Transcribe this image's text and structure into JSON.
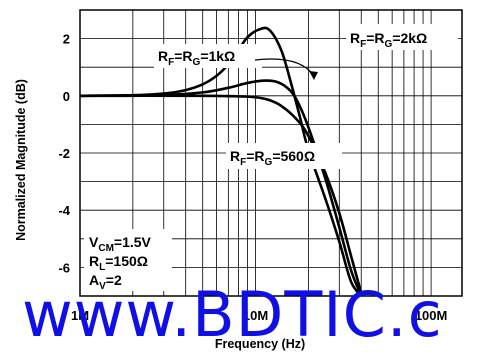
{
  "chart_data": {
    "type": "line",
    "xlabel": "Frequency (Hz)",
    "ylabel": "Normalized Magnitude (dB)",
    "x_scale": "log",
    "xlim": [
      1000000,
      150000000
    ],
    "ylim": [
      -7,
      3
    ],
    "x_ticks": [
      {
        "value": 1000000,
        "label": "1M"
      },
      {
        "value": 10000000,
        "label": "10M"
      },
      {
        "value": 100000000,
        "label": "100M"
      }
    ],
    "y_ticks": [
      {
        "value": 2,
        "label": "2"
      },
      {
        "value": 0,
        "label": "0"
      },
      {
        "value": -2,
        "label": "-2"
      },
      {
        "value": -4,
        "label": "-4"
      },
      {
        "value": -6,
        "label": "-6"
      }
    ],
    "grid": true,
    "series": [
      {
        "name": "RF=RG=2kΩ",
        "points": [
          [
            1000000,
            0
          ],
          [
            2000000,
            0.02
          ],
          [
            3000000,
            0.08
          ],
          [
            4000000,
            0.2
          ],
          [
            5000000,
            0.4
          ],
          [
            6000000,
            0.7
          ],
          [
            7000000,
            1.1
          ],
          [
            8000000,
            1.6
          ],
          [
            9000000,
            2.05
          ],
          [
            10500000,
            2.32
          ],
          [
            12000000,
            2.3
          ],
          [
            14000000,
            1.6
          ],
          [
            16000000,
            0.4
          ],
          [
            18000000,
            -0.8
          ],
          [
            20000000,
            -1.9
          ],
          [
            25000000,
            -3.6
          ],
          [
            30000000,
            -5.1
          ],
          [
            35000000,
            -6.5
          ],
          [
            40000000,
            -7.0
          ]
        ]
      },
      {
        "name": "RF=RG=1kΩ",
        "points": [
          [
            1000000,
            0
          ],
          [
            3000000,
            0.03
          ],
          [
            5000000,
            0.12
          ],
          [
            7000000,
            0.28
          ],
          [
            9000000,
            0.45
          ],
          [
            11000000,
            0.53
          ],
          [
            13000000,
            0.5
          ],
          [
            15000000,
            0.3
          ],
          [
            17000000,
            -0.1
          ],
          [
            20000000,
            -1.1
          ],
          [
            25000000,
            -2.9
          ],
          [
            30000000,
            -4.6
          ],
          [
            35000000,
            -6.1
          ],
          [
            40000000,
            -7.0
          ]
        ]
      },
      {
        "name": "RF=RG=560Ω",
        "points": [
          [
            1000000,
            0
          ],
          [
            5000000,
            0
          ],
          [
            8000000,
            -0.02
          ],
          [
            10000000,
            -0.05
          ],
          [
            12000000,
            -0.15
          ],
          [
            14000000,
            -0.35
          ],
          [
            17000000,
            -0.8
          ],
          [
            20000000,
            -1.4
          ],
          [
            25000000,
            -2.7
          ],
          [
            30000000,
            -4.1
          ],
          [
            35000000,
            -5.6
          ],
          [
            40000000,
            -6.9
          ]
        ]
      }
    ],
    "annotations": {
      "curve_2k": {
        "prefix": "R",
        "sub1": "F",
        "mid": "=R",
        "sub2": "G",
        "value": "=2kΩ"
      },
      "curve_1k": {
        "prefix": "R",
        "sub1": "F",
        "mid": "=R",
        "sub2": "G",
        "value": "=1kΩ"
      },
      "curve_560": {
        "prefix": "R",
        "sub1": "F",
        "mid": "=R",
        "sub2": "G",
        "value": "=560Ω"
      },
      "vcm": {
        "prefix": "V",
        "sub": "CM",
        "value": "=1.5V"
      },
      "rl": {
        "prefix": "R",
        "sub": "L",
        "value": "=150Ω"
      },
      "av": {
        "prefix": "A",
        "sub": "V",
        "value": "=2"
      }
    }
  },
  "watermark": "www.BDTIC.c",
  "colors": {
    "axis": "#000000",
    "grid": "#000000",
    "curve": "#000000",
    "watermark": "#1010e6"
  }
}
